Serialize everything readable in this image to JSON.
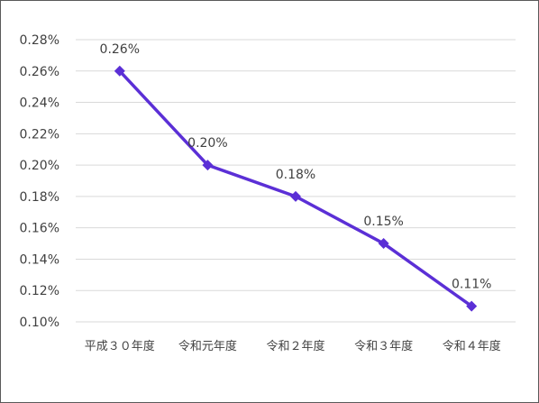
{
  "chart_data": {
    "type": "line",
    "title": "",
    "xlabel": "",
    "ylabel": "",
    "categories": [
      "平成３０年度",
      "令和元年度",
      "令和２年度",
      "令和３年度",
      "令和４年度"
    ],
    "series": [
      {
        "values": [
          0.26,
          0.2,
          0.18,
          0.15,
          0.11
        ],
        "data_labels": [
          "0.26%",
          "0.20%",
          "0.18%",
          "0.15%",
          "0.11%"
        ],
        "color": "#5b2fd6",
        "marker": "diamond"
      }
    ],
    "ylim": [
      0.1,
      0.28
    ],
    "y_ticks": [
      0.1,
      0.12,
      0.14,
      0.16,
      0.18,
      0.2,
      0.22,
      0.24,
      0.26,
      0.28
    ],
    "y_tick_labels": [
      "0.10%",
      "0.12%",
      "0.14%",
      "0.16%",
      "0.18%",
      "0.20%",
      "0.22%",
      "0.24%",
      "0.26%",
      "0.28%"
    ],
    "grid": true,
    "legend": "none"
  }
}
